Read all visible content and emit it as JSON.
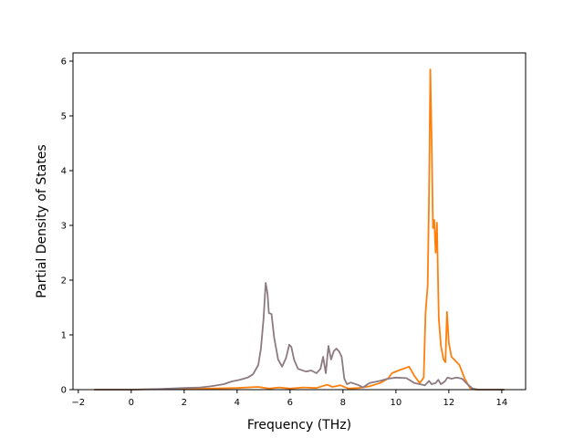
{
  "chart_data": {
    "type": "line",
    "title": "",
    "xlabel": "Frequency (THz)",
    "ylabel": "Partial Density of States",
    "xlim": [
      -2.2,
      14.9
    ],
    "ylim": [
      0,
      6.15
    ],
    "xticks": [
      -2,
      0,
      2,
      4,
      6,
      8,
      10,
      12,
      14
    ],
    "yticks": [
      0,
      1,
      2,
      3,
      4,
      5,
      6
    ],
    "grid": false,
    "legend": "none",
    "series": [
      {
        "color": "#ff7f0e",
        "points": [
          [
            -1.4,
            0
          ],
          [
            0,
            0
          ],
          [
            1,
            0.01
          ],
          [
            2,
            0.01
          ],
          [
            3,
            0.02
          ],
          [
            4,
            0.03
          ],
          [
            4.8,
            0.05
          ],
          [
            5.2,
            0.02
          ],
          [
            5.6,
            0.04
          ],
          [
            6,
            0.02
          ],
          [
            6.5,
            0.04
          ],
          [
            7,
            0.03
          ],
          [
            7.4,
            0.09
          ],
          [
            7.6,
            0.05
          ],
          [
            7.9,
            0.08
          ],
          [
            8.2,
            0.02
          ],
          [
            8.6,
            0.03
          ],
          [
            9,
            0.06
          ],
          [
            9.4,
            0.12
          ],
          [
            9.7,
            0.2
          ],
          [
            9.85,
            0.3
          ],
          [
            10.1,
            0.35
          ],
          [
            10.5,
            0.42
          ],
          [
            10.7,
            0.25
          ],
          [
            10.9,
            0.12
          ],
          [
            11.05,
            0.22
          ],
          [
            11.12,
            1.4
          ],
          [
            11.2,
            1.9
          ],
          [
            11.25,
            3.5
          ],
          [
            11.3,
            5.85
          ],
          [
            11.36,
            4.3
          ],
          [
            11.4,
            2.95
          ],
          [
            11.45,
            3.1
          ],
          [
            11.5,
            2.5
          ],
          [
            11.55,
            3.05
          ],
          [
            11.62,
            1.3
          ],
          [
            11.7,
            0.8
          ],
          [
            11.8,
            0.55
          ],
          [
            11.87,
            0.5
          ],
          [
            11.93,
            1.42
          ],
          [
            12,
            0.85
          ],
          [
            12.1,
            0.6
          ],
          [
            12.2,
            0.55
          ],
          [
            12.4,
            0.45
          ],
          [
            12.6,
            0.2
          ],
          [
            12.8,
            0.03
          ],
          [
            13,
            0
          ],
          [
            14.1,
            0
          ]
        ]
      },
      {
        "color": "#8c7a80",
        "points": [
          [
            -1.4,
            0
          ],
          [
            0,
            0
          ],
          [
            1,
            0.01
          ],
          [
            2,
            0.03
          ],
          [
            2.6,
            0.04
          ],
          [
            3,
            0.06
          ],
          [
            3.5,
            0.1
          ],
          [
            3.8,
            0.15
          ],
          [
            4.1,
            0.18
          ],
          [
            4.4,
            0.22
          ],
          [
            4.6,
            0.28
          ],
          [
            4.8,
            0.45
          ],
          [
            4.9,
            0.75
          ],
          [
            5,
            1.3
          ],
          [
            5.08,
            1.95
          ],
          [
            5.15,
            1.75
          ],
          [
            5.2,
            1.4
          ],
          [
            5.3,
            1.38
          ],
          [
            5.4,
            0.95
          ],
          [
            5.55,
            0.55
          ],
          [
            5.7,
            0.42
          ],
          [
            5.85,
            0.58
          ],
          [
            5.97,
            0.82
          ],
          [
            6.05,
            0.78
          ],
          [
            6.15,
            0.55
          ],
          [
            6.3,
            0.38
          ],
          [
            6.6,
            0.33
          ],
          [
            6.8,
            0.35
          ],
          [
            7,
            0.3
          ],
          [
            7.15,
            0.38
          ],
          [
            7.25,
            0.6
          ],
          [
            7.35,
            0.3
          ],
          [
            7.45,
            0.8
          ],
          [
            7.55,
            0.55
          ],
          [
            7.65,
            0.7
          ],
          [
            7.75,
            0.75
          ],
          [
            7.85,
            0.7
          ],
          [
            7.95,
            0.6
          ],
          [
            8.05,
            0.2
          ],
          [
            8.15,
            0.1
          ],
          [
            8.3,
            0.13
          ],
          [
            8.6,
            0.08
          ],
          [
            8.75,
            0.04
          ],
          [
            9,
            0.12
          ],
          [
            9.4,
            0.16
          ],
          [
            9.7,
            0.2
          ],
          [
            10,
            0.22
          ],
          [
            10.4,
            0.21
          ],
          [
            10.7,
            0.12
          ],
          [
            11.1,
            0.08
          ],
          [
            11.25,
            0.16
          ],
          [
            11.35,
            0.1
          ],
          [
            11.5,
            0.12
          ],
          [
            11.6,
            0.18
          ],
          [
            11.7,
            0.1
          ],
          [
            11.85,
            0.15
          ],
          [
            11.95,
            0.22
          ],
          [
            12.1,
            0.2
          ],
          [
            12.3,
            0.22
          ],
          [
            12.5,
            0.2
          ],
          [
            12.7,
            0.1
          ],
          [
            12.9,
            0.02
          ],
          [
            13.1,
            0
          ],
          [
            14.1,
            0
          ]
        ]
      }
    ]
  }
}
